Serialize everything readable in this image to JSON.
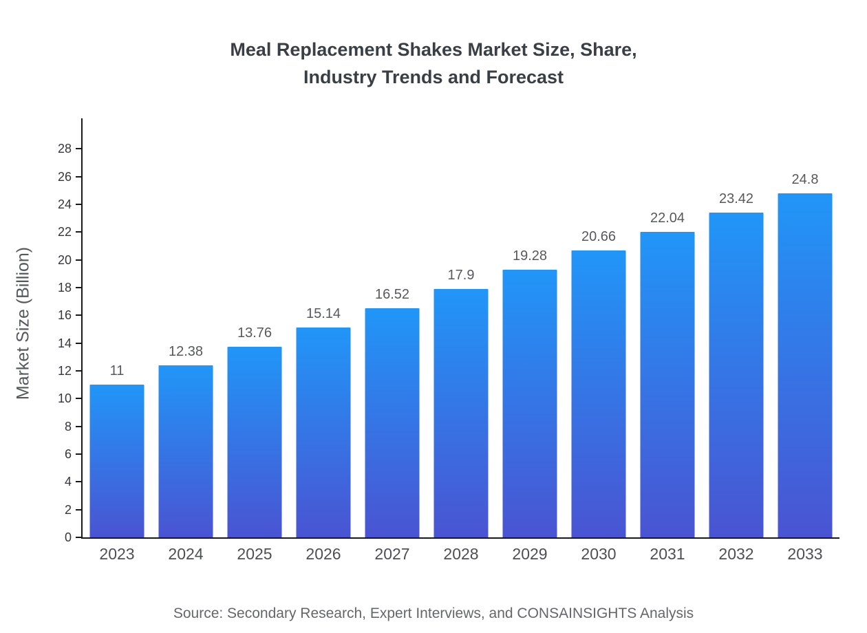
{
  "header": {
    "title_lines": [
      "Meal Replacement Shakes Market Size, Share,",
      "Industry Trends and Forecast"
    ]
  },
  "axes": {
    "y_axis_title": "Market Size (Billion)"
  },
  "footer": {
    "source": "Source: Secondary Research, Expert Interviews, and CONSAINSIGHTS Analysis"
  },
  "chart_data": {
    "type": "bar",
    "title": "Meal Replacement Shakes Market Size, Share, Industry Trends and Forecast",
    "categories": [
      "2023",
      "2024",
      "2025",
      "2026",
      "2027",
      "2028",
      "2029",
      "2030",
      "2031",
      "2032",
      "2033"
    ],
    "values": [
      11,
      12.38,
      13.76,
      15.14,
      16.52,
      17.9,
      19.28,
      20.66,
      22.04,
      23.42,
      24.8
    ],
    "xlabel": "",
    "ylabel": "Market Size (Billion)",
    "ylim": [
      0,
      30
    ],
    "yticks": [
      0,
      2,
      4,
      6,
      8,
      10,
      12,
      14,
      16,
      18,
      20,
      22,
      24,
      26,
      28
    ],
    "grid": false,
    "legend": false,
    "colors": {
      "bar_gradient_top": "#2196F8",
      "bar_gradient_bottom": "#4A54D2",
      "axis": "#16181d",
      "title_text": "#3a3f46",
      "label_text": "#55595e"
    }
  }
}
